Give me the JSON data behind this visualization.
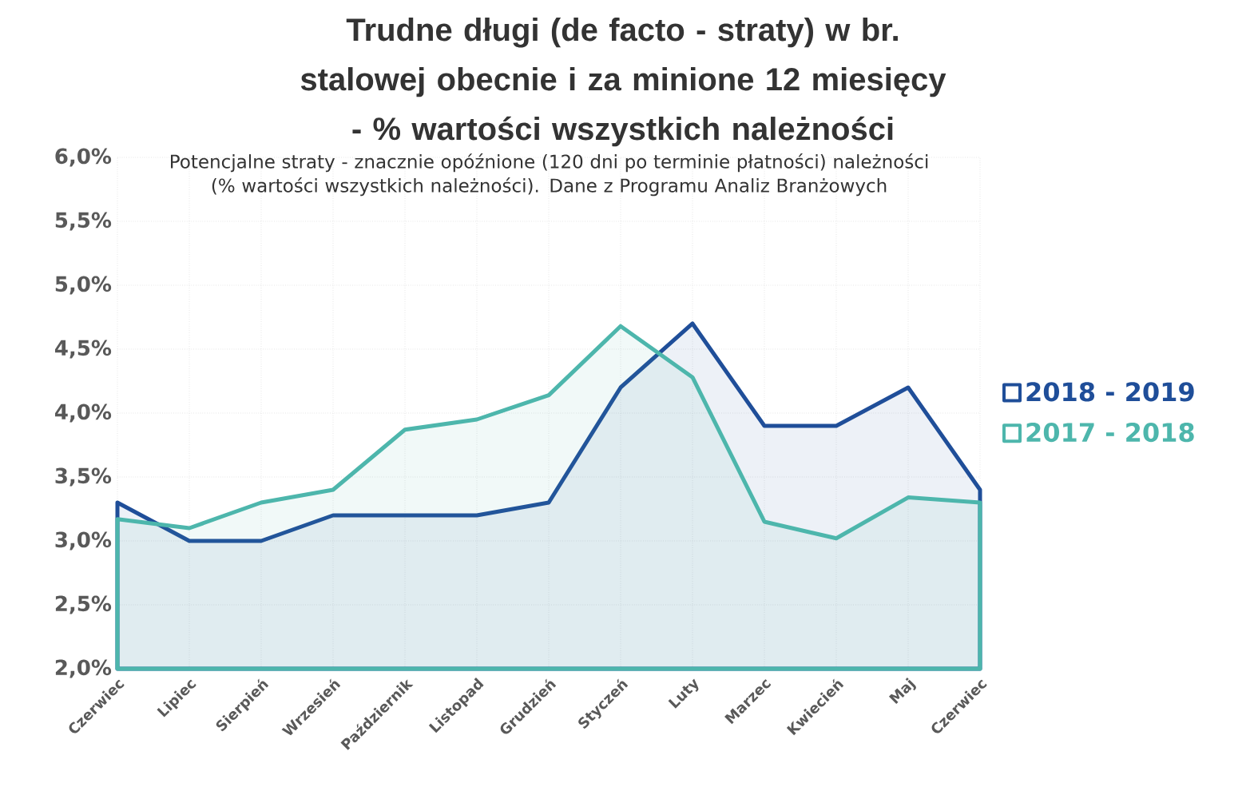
{
  "chart_data": {
    "type": "area",
    "title": "Trudne długi (de facto - straty) w br. stalowej obecnie i za minione 12 miesięcy - % wartości wszystkich należności",
    "subtitle": "Potencjalne straty - znacznie opóźnione (120 dni po terminie płatności) należności (% wartości wszystkich należności). Dane z Programu Analiz Branżowych",
    "categories": [
      "Czerwiec",
      "Lipiec",
      "Sierpień",
      "Wrzesień",
      "Październik",
      "Listopad",
      "Grudzień",
      "Styczeń",
      "Luty",
      "Marzec",
      "Kwiecień",
      "Maj",
      "Czerwiec"
    ],
    "series": [
      {
        "name": "2018 - 2019",
        "color": "#1f4e99",
        "values": [
          3.3,
          3.0,
          3.0,
          3.2,
          3.2,
          3.2,
          3.3,
          4.2,
          4.7,
          3.9,
          3.9,
          4.2,
          3.4
        ]
      },
      {
        "name": "2017 - 2018",
        "color": "#4db6ac",
        "values": [
          3.17,
          3.1,
          3.3,
          3.4,
          3.87,
          3.95,
          4.14,
          4.68,
          4.28,
          3.15,
          3.02,
          3.34,
          3.3
        ]
      }
    ],
    "ylim": [
      2,
      6
    ],
    "yticks": [
      {
        "value": 2,
        "label": "2,0%"
      },
      {
        "value": 2.5,
        "label": "2,5%"
      },
      {
        "value": 3,
        "label": "3,0%"
      },
      {
        "value": 3.5,
        "label": "3,5%"
      },
      {
        "value": 4,
        "label": "4,0%"
      },
      {
        "value": 4.5,
        "label": "4,5%"
      },
      {
        "value": 5,
        "label": "5,0%"
      },
      {
        "value": 5.5,
        "label": "5,5%"
      },
      {
        "value": 6,
        "label": "6,0%"
      }
    ],
    "grid": true,
    "legend": "right"
  }
}
